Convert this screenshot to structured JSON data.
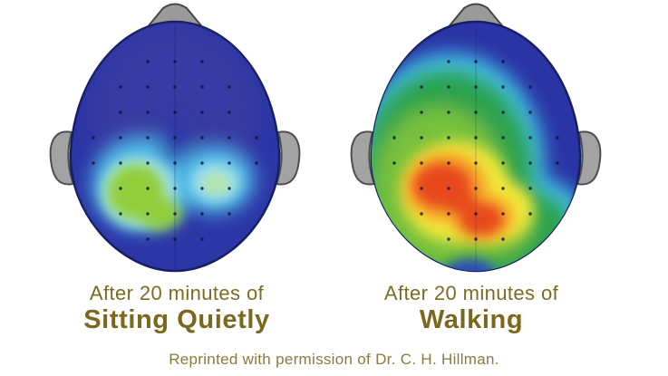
{
  "figure": {
    "left": {
      "prefix": "After 20 minutes of",
      "title": "Sitting Quietly",
      "map_description": "mostly dark blue scalp map with a small cyan and green activity patch in the central posterior region"
    },
    "right": {
      "prefix": "After 20 minutes of",
      "title": "Walking",
      "map_description": "widespread activity: green over most of the scalp with a large yellow, orange and red hotspot in the central posterior region; blue remains at the top right and rim"
    },
    "credit": "Reprinted with permission of Dr. C. H. Hillman."
  },
  "colors": {
    "background": "#ffffff",
    "caption_text": "#7b681c",
    "credit_text": "#8b7a3e",
    "scalp_low_blue": "#2c36a6",
    "cyan_mid": "#4db6e4",
    "green_mid": "#92ce3b",
    "yellow_high": "#f2e93a",
    "orange_high": "#f59a28",
    "red_peak": "#e84a1e",
    "head_hardware_gray": "#a3a3a3"
  }
}
